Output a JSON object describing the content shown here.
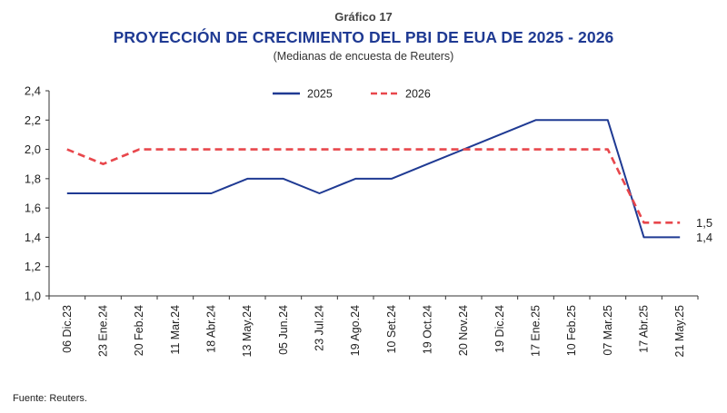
{
  "header": {
    "label": "Gráfico 17",
    "title": "PROYECCIÓN DE CRECIMIENTO DEL PBI DE EUA DE 2025 - 2026",
    "subtitle": "(Medianas de encuesta de Reuters)"
  },
  "footer": {
    "source": "Fuente: Reuters."
  },
  "chart_data": {
    "type": "line",
    "title": "PROYECCIÓN DE CRECIMIENTO DEL PBI DE EUA DE 2025 - 2026",
    "subtitle": "(Medianas de encuesta de Reuters)",
    "xlabel": "",
    "ylabel": "",
    "x": [
      "06 Dic.23",
      "23 Ene.24",
      "20 Feb.24",
      "11 Mar.24",
      "18 Abr.24",
      "13 May.24",
      "05 Jun.24",
      "23 Jul.24",
      "19 Ago.24",
      "10 Set.24",
      "19 Oct.24",
      "20 Nov.24",
      "19 Dic.24",
      "17 Ene.25",
      "10 Feb.25",
      "07 Mar.25",
      "17 Abr.25",
      "21 May.25"
    ],
    "ylim": [
      1.0,
      2.4
    ],
    "yticks": [
      "1,0",
      "1,2",
      "1,4",
      "1,6",
      "1,8",
      "2,0",
      "2,2",
      "2,4"
    ],
    "series": [
      {
        "name": "2025",
        "color": "#1f3a93",
        "style": "solid",
        "values": [
          1.7,
          1.7,
          1.7,
          1.7,
          1.7,
          1.8,
          1.8,
          1.7,
          1.8,
          1.8,
          1.9,
          2.0,
          2.1,
          2.2,
          2.2,
          2.2,
          1.4,
          1.4
        ],
        "end_label": "1,4"
      },
      {
        "name": "2026",
        "color": "#e8474c",
        "style": "dashed",
        "values": [
          2.0,
          1.9,
          2.0,
          2.0,
          2.0,
          2.0,
          2.0,
          2.0,
          2.0,
          2.0,
          2.0,
          2.0,
          2.0,
          2.0,
          2.0,
          2.0,
          1.5,
          1.5
        ],
        "end_label": "1,5"
      }
    ],
    "legend": "top-center",
    "grid": false
  }
}
